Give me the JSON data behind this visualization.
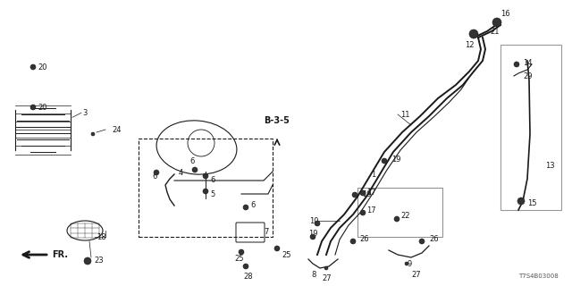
{
  "bg_color": "#ffffff",
  "line_color": "#1a1a1a",
  "fig_width": 6.4,
  "fig_height": 3.2,
  "dpi": 100,
  "note_text": "T7S4B03008",
  "diagram_ref": "B-3-5",
  "fr_label": "FR."
}
